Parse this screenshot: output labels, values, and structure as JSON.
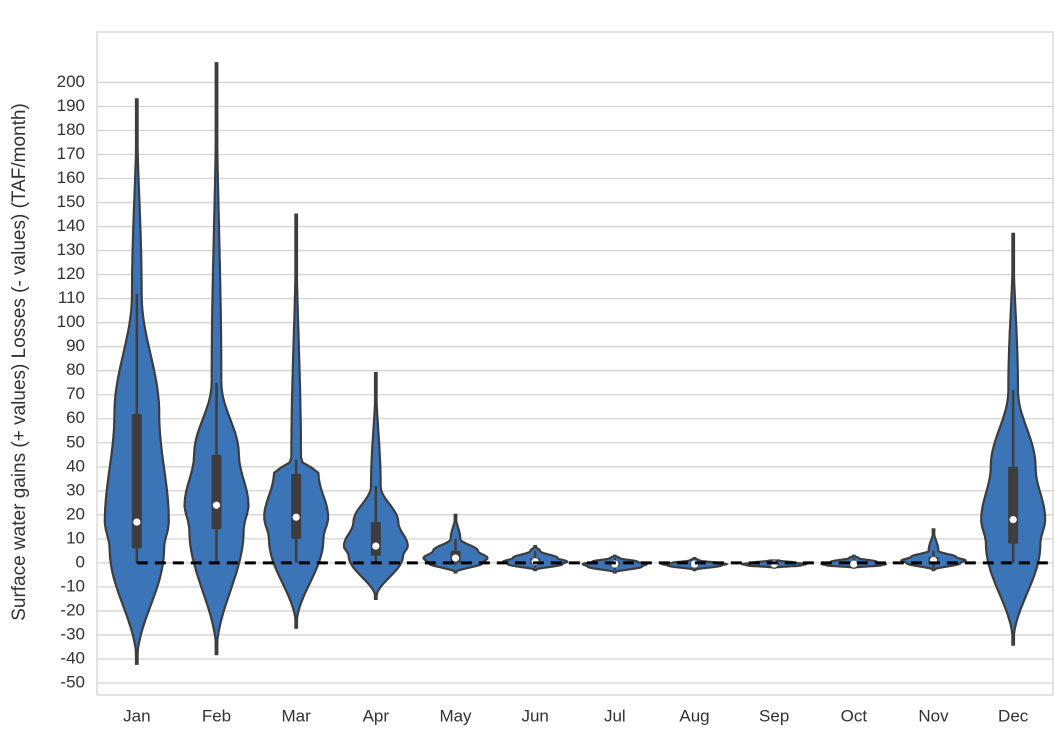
{
  "chart_data": {
    "type": "violin",
    "y_label": "Surface water gains (+ values) Losses (- values) (TAF/month)",
    "categories": [
      "Jan",
      "Feb",
      "Mar",
      "Apr",
      "May",
      "Jun",
      "Jul",
      "Aug",
      "Sep",
      "Oct",
      "Nov",
      "Dec"
    ],
    "color": "#3b75b7",
    "min": [
      -42,
      -38,
      -27,
      -15,
      -4,
      -3,
      -4,
      -3,
      -2,
      -2,
      -3,
      -34
    ],
    "whisker_low": [
      0,
      0,
      0,
      0,
      -1,
      -2,
      -3,
      -2,
      -2,
      -2,
      -2,
      0
    ],
    "q1": [
      6,
      14,
      10,
      3,
      0,
      -0.5,
      -1.5,
      -1,
      -1,
      -1,
      0,
      8
    ],
    "median": [
      17,
      24,
      19,
      7,
      2,
      0.5,
      -0.5,
      -0.5,
      -0.5,
      -0.5,
      1,
      18
    ],
    "q3": [
      62,
      45,
      37,
      17,
      5,
      2,
      0.5,
      0,
      0,
      0.5,
      2.5,
      40
    ],
    "whisker_high": [
      112,
      75,
      43,
      32,
      10,
      5,
      2,
      1,
      1,
      2,
      5,
      72
    ],
    "max": [
      193,
      208,
      145,
      79,
      20,
      7,
      3,
      2,
      1,
      3,
      14,
      137
    ],
    "reference_line": 0,
    "ylim": [
      -55,
      221
    ],
    "yticks": [
      -50,
      -40,
      -30,
      -20,
      -10,
      0,
      10,
      20,
      30,
      40,
      50,
      60,
      70,
      80,
      90,
      100,
      110,
      120,
      130,
      140,
      150,
      160,
      170,
      180,
      190,
      200
    ],
    "grid": true
  }
}
